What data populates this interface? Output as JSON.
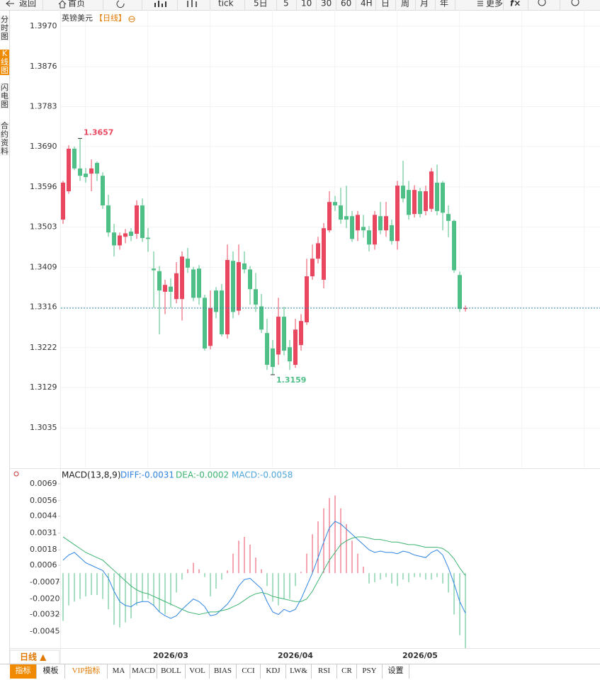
{
  "toolbar": {
    "items": [
      "返回",
      "首页",
      "tick",
      "5日",
      "5",
      "10",
      "30",
      "60",
      "4H",
      "日",
      "周",
      "月",
      "年",
      "更多"
    ]
  },
  "sidebar": {
    "items": [
      "分时图",
      "K线图",
      "闪电图",
      "合约资料"
    ],
    "active": 1
  },
  "footer": {
    "period": "日线 ▲",
    "tabs": [
      "指标",
      "模板",
      "VIP指标",
      "MA",
      "MACD",
      "BOLL",
      "VOL",
      "BIAS",
      "CCI",
      "KDJ",
      "LW&",
      "RSI",
      "CR",
      "PSY",
      "设置"
    ],
    "active": 0,
    "vip": 2
  },
  "chart_data": [
    {
      "type": "candlestick",
      "title": "英镑美元",
      "period": "【日线】",
      "up_color": "#e8475f",
      "down_color": "#4fbf87",
      "ylim": [
        1.2943,
        1.4008
      ],
      "yticks": [
        {
          "value": 1.397,
          "label": "1.3970"
        },
        1.3876,
        1.3783,
        {
          "value": 1.369,
          "label": "1.3690"
        },
        1.3596,
        1.3503,
        1.3409,
        1.3316,
        1.3222,
        1.3129,
        1.3035
      ],
      "grid": true,
      "annotations": {
        "high": "1.3657",
        "low": "1.3159"
      },
      "candles": [
        [
          1.352,
          1.361,
          1.351,
          1.3606
        ],
        [
          1.3586,
          1.3693,
          1.358,
          1.3685
        ],
        [
          1.3685,
          1.369,
          1.3635,
          1.3639
        ],
        [
          1.3639,
          1.3709,
          1.361,
          1.3622
        ],
        [
          1.3627,
          1.364,
          1.3606,
          1.3619
        ],
        [
          1.3627,
          1.366,
          1.3586,
          1.3639
        ],
        [
          1.3652,
          1.3655,
          1.361,
          1.3627
        ],
        [
          1.3622,
          1.363,
          1.3545,
          1.3553
        ],
        [
          1.3553,
          1.3578,
          1.348,
          1.349
        ],
        [
          1.349,
          1.351,
          1.3434,
          1.346
        ],
        [
          1.346,
          1.349,
          1.345,
          1.3483
        ],
        [
          1.348,
          1.3498,
          1.3465,
          1.3488
        ],
        [
          1.3492,
          1.35,
          1.347,
          1.3482
        ],
        [
          1.3487,
          1.3565,
          1.3475,
          1.3553
        ],
        [
          1.3553,
          1.3569,
          1.3468,
          1.3477
        ],
        [
          1.3478,
          1.35,
          1.3445,
          1.3475
        ],
        [
          1.3406,
          1.3446,
          1.3315,
          1.3402
        ],
        [
          1.34,
          1.3412,
          1.3253,
          1.3355
        ],
        [
          1.3352,
          1.338,
          1.33,
          1.3368
        ],
        [
          1.3364,
          1.3383,
          1.3315,
          1.3352
        ],
        [
          1.3335,
          1.3421,
          1.3325,
          1.3395
        ],
        [
          1.3335,
          1.3446,
          1.3285,
          1.3434
        ],
        [
          1.3429,
          1.3454,
          1.3396,
          1.3408
        ],
        [
          1.3404,
          1.341,
          1.333,
          1.3338
        ],
        [
          1.3406,
          1.3414,
          1.3322,
          1.3338
        ],
        [
          1.3338,
          1.3345,
          1.3215,
          1.322
        ],
        [
          1.3226,
          1.3355,
          1.3218,
          1.3314
        ],
        [
          1.3355,
          1.3363,
          1.329,
          1.3305
        ],
        [
          1.3355,
          1.337,
          1.3248,
          1.3253
        ],
        [
          1.3253,
          1.3462,
          1.3243,
          1.3426
        ],
        [
          1.3424,
          1.3446,
          1.329,
          1.3305
        ],
        [
          1.3308,
          1.3462,
          1.3298,
          1.3421
        ],
        [
          1.3418,
          1.3446,
          1.3395,
          1.3404
        ],
        [
          1.3404,
          1.3412,
          1.3322,
          1.3358
        ],
        [
          1.3358,
          1.3396,
          1.3305,
          1.3322
        ],
        [
          1.3318,
          1.3347,
          1.3256,
          1.3264
        ],
        [
          1.3256,
          1.3289,
          1.317,
          1.3182
        ],
        [
          1.322,
          1.324,
          1.3159,
          1.3177
        ],
        [
          1.3206,
          1.3338,
          1.3182,
          1.3294
        ],
        [
          1.3294,
          1.3317,
          1.3204,
          1.3215
        ],
        [
          1.3223,
          1.324,
          1.317,
          1.319
        ],
        [
          1.3182,
          1.3289,
          1.3175,
          1.3264
        ],
        [
          1.3228,
          1.33,
          1.3215,
          1.3284
        ],
        [
          1.3281,
          1.3429,
          1.3275,
          1.3388
        ],
        [
          1.3388,
          1.3462,
          1.338,
          1.3429
        ],
        [
          1.3429,
          1.348,
          1.3418,
          1.3465
        ],
        [
          1.338,
          1.3512,
          1.336,
          1.35
        ],
        [
          1.3495,
          1.3586,
          1.349,
          1.3561
        ],
        [
          1.3561,
          1.3575,
          1.354,
          1.3553
        ],
        [
          1.3553,
          1.3594,
          1.351,
          1.352
        ],
        [
          1.3528,
          1.3599,
          1.35,
          1.352
        ],
        [
          1.3528,
          1.354,
          1.3468,
          1.3475
        ],
        [
          1.3495,
          1.354,
          1.347,
          1.3531
        ],
        [
          1.3503,
          1.3531,
          1.3478,
          1.3495
        ],
        [
          1.3495,
          1.3505,
          1.3446,
          1.3462
        ],
        [
          1.3462,
          1.354,
          1.345,
          1.3531
        ],
        [
          1.3528,
          1.3561,
          1.3486,
          1.3495
        ],
        [
          1.3495,
          1.3561,
          1.348,
          1.3528
        ],
        [
          1.3507,
          1.352,
          1.3462,
          1.347
        ],
        [
          1.347,
          1.361,
          1.345,
          1.3599
        ],
        [
          1.3599,
          1.3657,
          1.356,
          1.3569
        ],
        [
          1.3589,
          1.361,
          1.352,
          1.3531
        ],
        [
          1.3533,
          1.36,
          1.3525,
          1.3589
        ],
        [
          1.3586,
          1.3594,
          1.3525,
          1.3533
        ],
        [
          1.354,
          1.3599,
          1.353,
          1.3586
        ],
        [
          1.3545,
          1.364,
          1.3538,
          1.3632
        ],
        [
          1.3606,
          1.3648,
          1.353,
          1.354
        ],
        [
          1.3606,
          1.361,
          1.3495,
          1.3536
        ],
        [
          1.3533,
          1.3553,
          1.3479,
          1.3517
        ],
        [
          1.3517,
          1.352,
          1.3396,
          1.3402
        ],
        [
          1.3391,
          1.3399,
          1.3305,
          1.3312
        ],
        [
          1.3312,
          1.332,
          1.3306,
          1.3314
        ]
      ]
    },
    {
      "type": "macd",
      "legend": [
        {
          "text": "MACD(13,8,9)",
          "color": "#222222"
        },
        {
          "text": "DIFF:-0.0031",
          "color": "#2f84e0"
        },
        {
          "text": "DEA:-0.0002",
          "color": "#3cb371"
        },
        {
          "text": "MACD:-0.0058",
          "color": "#4ea6dc"
        }
      ],
      "ylim": [
        -0.0058,
        0.008
      ],
      "yticks": [
        0.0069,
        0.0056,
        0.0044,
        0.0031,
        0.0018,
        {
          "value": 0.0006,
          "label": "0.0006"
        },
        -0.0007,
        {
          "value": -0.002,
          "label": "-0.0020"
        },
        -0.0032,
        -0.0045
      ],
      "categories": [
        null,
        null,
        null,
        null,
        null,
        null,
        null,
        null,
        null,
        null,
        null,
        null,
        null,
        null,
        null,
        null,
        null,
        null,
        null,
        "2026/03",
        null,
        null,
        null,
        null,
        null,
        null,
        null,
        null,
        null,
        null,
        null,
        null,
        null,
        null,
        null,
        null,
        null,
        null,
        null,
        null,
        null,
        "2026/04",
        null,
        null,
        null,
        null,
        null,
        null,
        null,
        null,
        null,
        null,
        null,
        null,
        null,
        null,
        null,
        null,
        null,
        null,
        null,
        null,
        null,
        "2026/05",
        null,
        null,
        null,
        null,
        null,
        null,
        null,
        null
      ],
      "series": [
        {
          "style": "histogram",
          "up_color": "#e8475f",
          "down_color": "#4fbf87",
          "values": [
            -0.0037,
            -0.0025,
            -0.0022,
            -0.002,
            -0.0018,
            -0.0017,
            -0.0017,
            -0.002,
            -0.0028,
            -0.004,
            -0.0042,
            -0.0038,
            -0.0035,
            -0.0025,
            -0.0022,
            -0.002,
            -0.0025,
            -0.003,
            -0.0032,
            -0.0025,
            -0.0015,
            -0.0005,
            0.0003,
            0.0008,
            0.0003,
            -0.0003,
            -0.0018,
            -0.0012,
            -0.0005,
            0.0002,
            0.0015,
            0.0025,
            0.0028,
            0.0022,
            0.0012,
            0.0003,
            -0.001,
            -0.0022,
            -0.0025,
            -0.002,
            -0.002,
            -0.001,
            0.0001,
            0.0015,
            0.003,
            0.004,
            0.005,
            0.0058,
            0.006,
            0.005,
            0.0038,
            0.0025,
            0.0015,
            0.0005,
            -0.0008,
            -0.0007,
            -0.0005,
            -0.0003,
            -0.0008,
            -0.001,
            -0.0005,
            -0.0007,
            -0.0003,
            -0.0003,
            -0.0005,
            -0.0005,
            -0.0003,
            -0.0008,
            -0.0015,
            -0.0032,
            -0.0048,
            -0.0058
          ]
        },
        {
          "style": "line",
          "color": "#2f84e0",
          "values": [
            0.001,
            0.0014,
            0.0016,
            0.0012,
            0.0008,
            0.0006,
            0.0004,
            0.0002,
            -0.0004,
            -0.0014,
            -0.0022,
            -0.0025,
            -0.0026,
            -0.0023,
            -0.0022,
            -0.0022,
            -0.0025,
            -0.003,
            -0.0033,
            -0.0035,
            -0.0033,
            -0.0028,
            -0.0024,
            -0.002,
            -0.0022,
            -0.0026,
            -0.0033,
            -0.0032,
            -0.0028,
            -0.0024,
            -0.0018,
            -0.001,
            -0.0005,
            -0.0004,
            -0.0008,
            -0.0012,
            -0.0022,
            -0.003,
            -0.0032,
            -0.0028,
            -0.003,
            -0.0028,
            -0.002,
            -0.001,
            0.0,
            0.0012,
            0.0024,
            0.0035,
            0.004,
            0.0038,
            0.0034,
            0.003,
            0.0026,
            0.0022,
            0.0018,
            0.0016,
            0.0017,
            0.0016,
            0.0016,
            0.0015,
            0.0017,
            0.0016,
            0.0014,
            0.0013,
            0.0012,
            0.0016,
            0.0018,
            0.0014,
            0.0004,
            -0.0008,
            -0.0022,
            -0.0031
          ]
        },
        {
          "style": "line",
          "color": "#3cb371",
          "values": [
            0.0028,
            0.0025,
            0.0022,
            0.0019,
            0.0016,
            0.0014,
            0.0012,
            0.001,
            0.0006,
            0.0002,
            -0.0002,
            -0.0006,
            -0.001,
            -0.0013,
            -0.0015,
            -0.0016,
            -0.0018,
            -0.002,
            -0.0022,
            -0.0024,
            -0.0026,
            -0.0028,
            -0.003,
            -0.0031,
            -0.0032,
            -0.0031,
            -0.003,
            -0.003,
            -0.0029,
            -0.0028,
            -0.0026,
            -0.0024,
            -0.0021,
            -0.0018,
            -0.0016,
            -0.0015,
            -0.0016,
            -0.0018,
            -0.0019,
            -0.002,
            -0.0021,
            -0.0022,
            -0.0022,
            -0.002,
            -0.0014,
            -0.0006,
            0.0002,
            0.001,
            0.0016,
            0.0022,
            0.0025,
            0.0027,
            0.0028,
            0.0028,
            0.0027,
            0.0026,
            0.0026,
            0.0025,
            0.0024,
            0.0024,
            0.0023,
            0.0022,
            0.0022,
            0.0021,
            0.002,
            0.002,
            0.002,
            0.0019,
            0.0016,
            0.0011,
            0.0004,
            -0.0002
          ]
        }
      ]
    }
  ]
}
